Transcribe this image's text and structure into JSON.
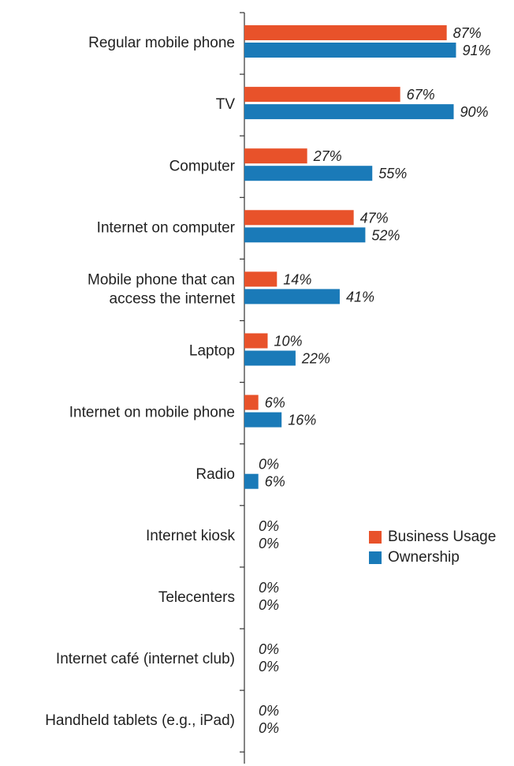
{
  "chart_data": {
    "type": "bar",
    "orientation": "horizontal",
    "categories": [
      "Regular mobile phone",
      "TV",
      "Computer",
      "Internet on computer",
      "Mobile phone that can access the internet",
      "Laptop",
      "Internet on mobile phone",
      "Radio",
      "Internet kiosk",
      "Telecenters",
      "Internet café (internet club)",
      "Handheld tablets (e.g., iPad)"
    ],
    "category_label_lines": [
      [
        "Regular mobile phone"
      ],
      [
        "TV"
      ],
      [
        "Computer"
      ],
      [
        "Internet on computer"
      ],
      [
        "Mobile phone that can",
        "access the internet"
      ],
      [
        "Laptop"
      ],
      [
        "Internet on mobile phone"
      ],
      [
        "Radio"
      ],
      [
        "Internet kiosk"
      ],
      [
        "Telecenters"
      ],
      [
        "Internet café (internet club)"
      ],
      [
        "Handheld tablets (e.g., iPad)"
      ]
    ],
    "series": [
      {
        "name": "Business Usage",
        "color": "#e8522a",
        "values": [
          87,
          67,
          27,
          47,
          14,
          10,
          6,
          0,
          0,
          0,
          0,
          0
        ]
      },
      {
        "name": "Ownership",
        "color": "#1a7ab8",
        "values": [
          91,
          90,
          55,
          52,
          41,
          22,
          16,
          6,
          0,
          0,
          0,
          0
        ]
      }
    ],
    "value_suffix": "%",
    "xlim": [
      0,
      100
    ],
    "grid": false,
    "legend_position": "right"
  }
}
